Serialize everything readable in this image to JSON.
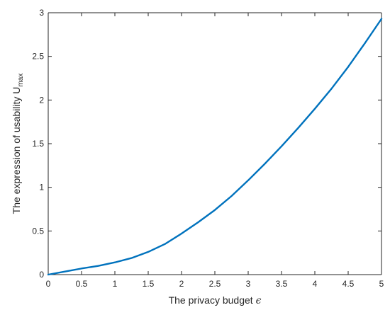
{
  "chart_data": {
    "type": "line",
    "xlabel_text": "The privacy budget ",
    "xlabel_symbol": "ϵ",
    "ylabel_text": "The expression of usability U",
    "ylabel_subscript": "max",
    "xlim": [
      0,
      5
    ],
    "ylim": [
      0,
      3
    ],
    "xticks": [
      0,
      0.5,
      1,
      1.5,
      2,
      2.5,
      3,
      3.5,
      4,
      4.5,
      5
    ],
    "xtick_labels": [
      "0",
      "0.5",
      "1",
      "1.5",
      "2",
      "2.5",
      "3",
      "3.5",
      "4",
      "4.5",
      "5"
    ],
    "yticks": [
      0,
      0.5,
      1,
      1.5,
      2,
      2.5,
      3
    ],
    "ytick_labels": [
      "0",
      "0.5",
      "1",
      "1.5",
      "2",
      "2.5",
      "3"
    ],
    "grid": false,
    "series": [
      {
        "color": "#0072BD",
        "x": [
          0,
          0.25,
          0.5,
          0.75,
          1,
          1.25,
          1.5,
          1.75,
          2,
          2.25,
          2.5,
          2.75,
          3,
          3.25,
          3.5,
          3.75,
          4,
          4.25,
          4.5,
          4.75,
          5
        ],
        "y": [
          0,
          0.035,
          0.07,
          0.1,
          0.14,
          0.19,
          0.26,
          0.35,
          0.47,
          0.6,
          0.74,
          0.9,
          1.08,
          1.27,
          1.47,
          1.68,
          1.9,
          2.13,
          2.38,
          2.65,
          2.93
        ]
      }
    ]
  }
}
